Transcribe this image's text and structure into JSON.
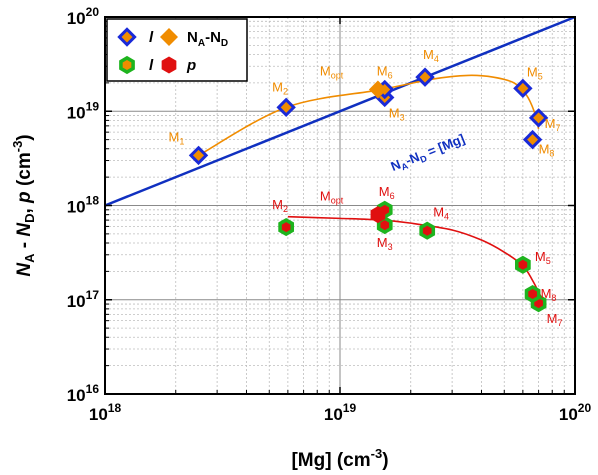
{
  "chart_data": {
    "type": "scatter",
    "x_scale": "log",
    "y_scale": "log",
    "xlim": [
      1e+18,
      1e+20
    ],
    "ylim": [
      1e+16,
      1e+20
    ],
    "xlabel": "[Mg] (cm⁻³)",
    "ylabel": "NA - ND, p (cm⁻³)",
    "x_ticks": [
      "10¹⁸",
      "10¹⁹",
      "10²⁰"
    ],
    "y_ticks": [
      "10¹⁶",
      "10¹⁷",
      "10¹⁸",
      "10¹⁹",
      "10²⁰"
    ],
    "legend": {
      "placement": "top-left",
      "row1": {
        "marker_open": "diamond",
        "marker_filled": "diamond",
        "italic": "l",
        "text": "NA-ND"
      },
      "row2": {
        "marker_open": "hexagon",
        "marker_filled": "hexagon",
        "italic": "l",
        "text": "p"
      }
    },
    "reference_line": {
      "label": "NA-ND = [Mg]",
      "color": "#1030c0",
      "points": [
        [
          1e+18,
          1e+18
        ],
        [
          1e+20,
          1e+20
        ]
      ]
    },
    "series": [
      {
        "name": "NA-ND",
        "color": "#f08c00",
        "open_marker": "diamond",
        "points": [
          {
            "x": 2.5e+18,
            "y": 3.4e+18,
            "label": "M1"
          },
          {
            "x": 5.9e+18,
            "y": 1.1e+19,
            "label": "M2"
          },
          {
            "x": 1.55e+19,
            "y": 1.4e+19,
            "label": "M3"
          },
          {
            "x": 2.3e+19,
            "y": 2.3e+19,
            "label": "M4"
          },
          {
            "x": 6e+19,
            "y": 1.75e+19,
            "label": "M5"
          },
          {
            "x": 1.55e+19,
            "y": 1.7e+19,
            "label": "M6"
          },
          {
            "x": 7e+19,
            "y": 8.5e+18,
            "label": "M7"
          },
          {
            "x": 6.6e+19,
            "y": 5e+18,
            "label": "M8"
          }
        ],
        "filled_point": {
          "x": 1.45e+19,
          "y": 1.7e+19,
          "label": "Mopt"
        },
        "fit_curve": [
          [
            2.5e+18,
            3.4e+18
          ],
          [
            5.9e+18,
            1.1e+19
          ],
          [
            1.5e+19,
            1.7e+19
          ],
          [
            2.5e+19,
            2.2e+19
          ],
          [
            3.5e+19,
            2.4e+19
          ],
          [
            4.5e+19,
            2.3e+19
          ],
          [
            5.5e+19,
            2e+19
          ],
          [
            6.2e+19,
            1.5e+19
          ],
          [
            6.7e+19,
            1e+19
          ],
          [
            7e+19,
            6.5e+18
          ]
        ]
      },
      {
        "name": "p",
        "color": "#e01010",
        "open_marker": "hexagon",
        "points": [
          {
            "x": 5.9e+18,
            "y": 5.9e+17,
            "label": "M2"
          },
          {
            "x": 1.55e+19,
            "y": 6.2e+17,
            "label": "M3"
          },
          {
            "x": 2.35e+19,
            "y": 5.4e+17,
            "label": "M4"
          },
          {
            "x": 6e+19,
            "y": 2.35e+17,
            "label": "M5"
          },
          {
            "x": 1.55e+19,
            "y": 9e+17,
            "label": "M6"
          },
          {
            "x": 7e+19,
            "y": 9.2e+16,
            "label": "M7"
          },
          {
            "x": 6.6e+19,
            "y": 1.15e+17,
            "label": "M8"
          }
        ],
        "filled_point": {
          "x": 1.45e+19,
          "y": 8e+17,
          "label": "Mopt"
        },
        "fit_curve": [
          [
            6e+18,
            7.6e+17
          ],
          [
            1e+19,
            7.3e+17
          ],
          [
            1.5e+19,
            7e+17
          ],
          [
            2e+19,
            6.5e+17
          ],
          [
            3e+19,
            5.5e+17
          ],
          [
            4e+19,
            4.3e+17
          ],
          [
            5e+19,
            3.2e+17
          ],
          [
            6e+19,
            2.3e+17
          ],
          [
            6.6e+19,
            1.6e+17
          ],
          [
            7.2e+19,
            1.05e+17
          ]
        ]
      }
    ]
  }
}
